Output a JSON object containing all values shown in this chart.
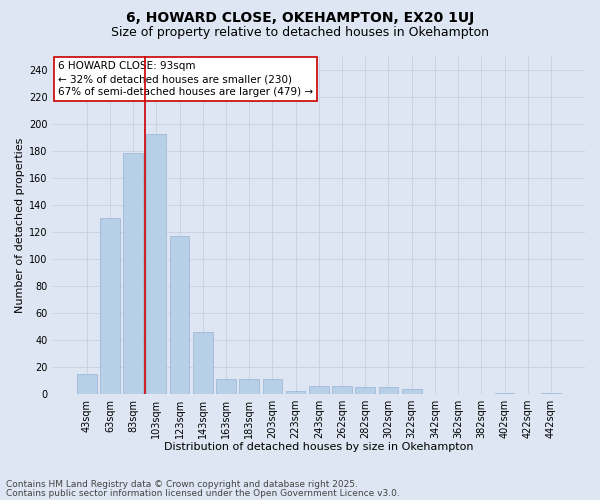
{
  "title1": "6, HOWARD CLOSE, OKEHAMPTON, EX20 1UJ",
  "title2": "Size of property relative to detached houses in Okehampton",
  "xlabel": "Distribution of detached houses by size in Okehampton",
  "ylabel": "Number of detached properties",
  "categories": [
    "43sqm",
    "63sqm",
    "83sqm",
    "103sqm",
    "123sqm",
    "143sqm",
    "163sqm",
    "183sqm",
    "203sqm",
    "223sqm",
    "243sqm",
    "262sqm",
    "282sqm",
    "302sqm",
    "322sqm",
    "342sqm",
    "362sqm",
    "382sqm",
    "402sqm",
    "422sqm",
    "442sqm"
  ],
  "values": [
    15,
    130,
    178,
    192,
    117,
    46,
    11,
    11,
    11,
    2,
    6,
    6,
    5,
    5,
    4,
    0,
    0,
    0,
    1,
    0,
    1
  ],
  "bar_color": "#b8cfe8",
  "bar_edge_color": "#9ab4d4",
  "grid_color": "#c8d4e4",
  "background_color": "#dde6f2",
  "ref_line_color": "#cc0000",
  "ref_line_x": 2.5,
  "annotation_text": "6 HOWARD CLOSE: 93sqm\n← 32% of detached houses are smaller (230)\n67% of semi-detached houses are larger (479) →",
  "annotation_box_facecolor": "#ffffff",
  "annotation_box_edgecolor": "#cc0000",
  "ylim": [
    0,
    250
  ],
  "yticks": [
    0,
    20,
    40,
    60,
    80,
    100,
    120,
    140,
    160,
    180,
    200,
    220,
    240
  ],
  "footer1": "Contains HM Land Registry data © Crown copyright and database right 2025.",
  "footer2": "Contains public sector information licensed under the Open Government Licence v3.0.",
  "title1_fontsize": 10,
  "title2_fontsize": 9,
  "xlabel_fontsize": 8,
  "ylabel_fontsize": 8,
  "tick_fontsize": 7,
  "annotation_fontsize": 7.5,
  "footer_fontsize": 6.5
}
